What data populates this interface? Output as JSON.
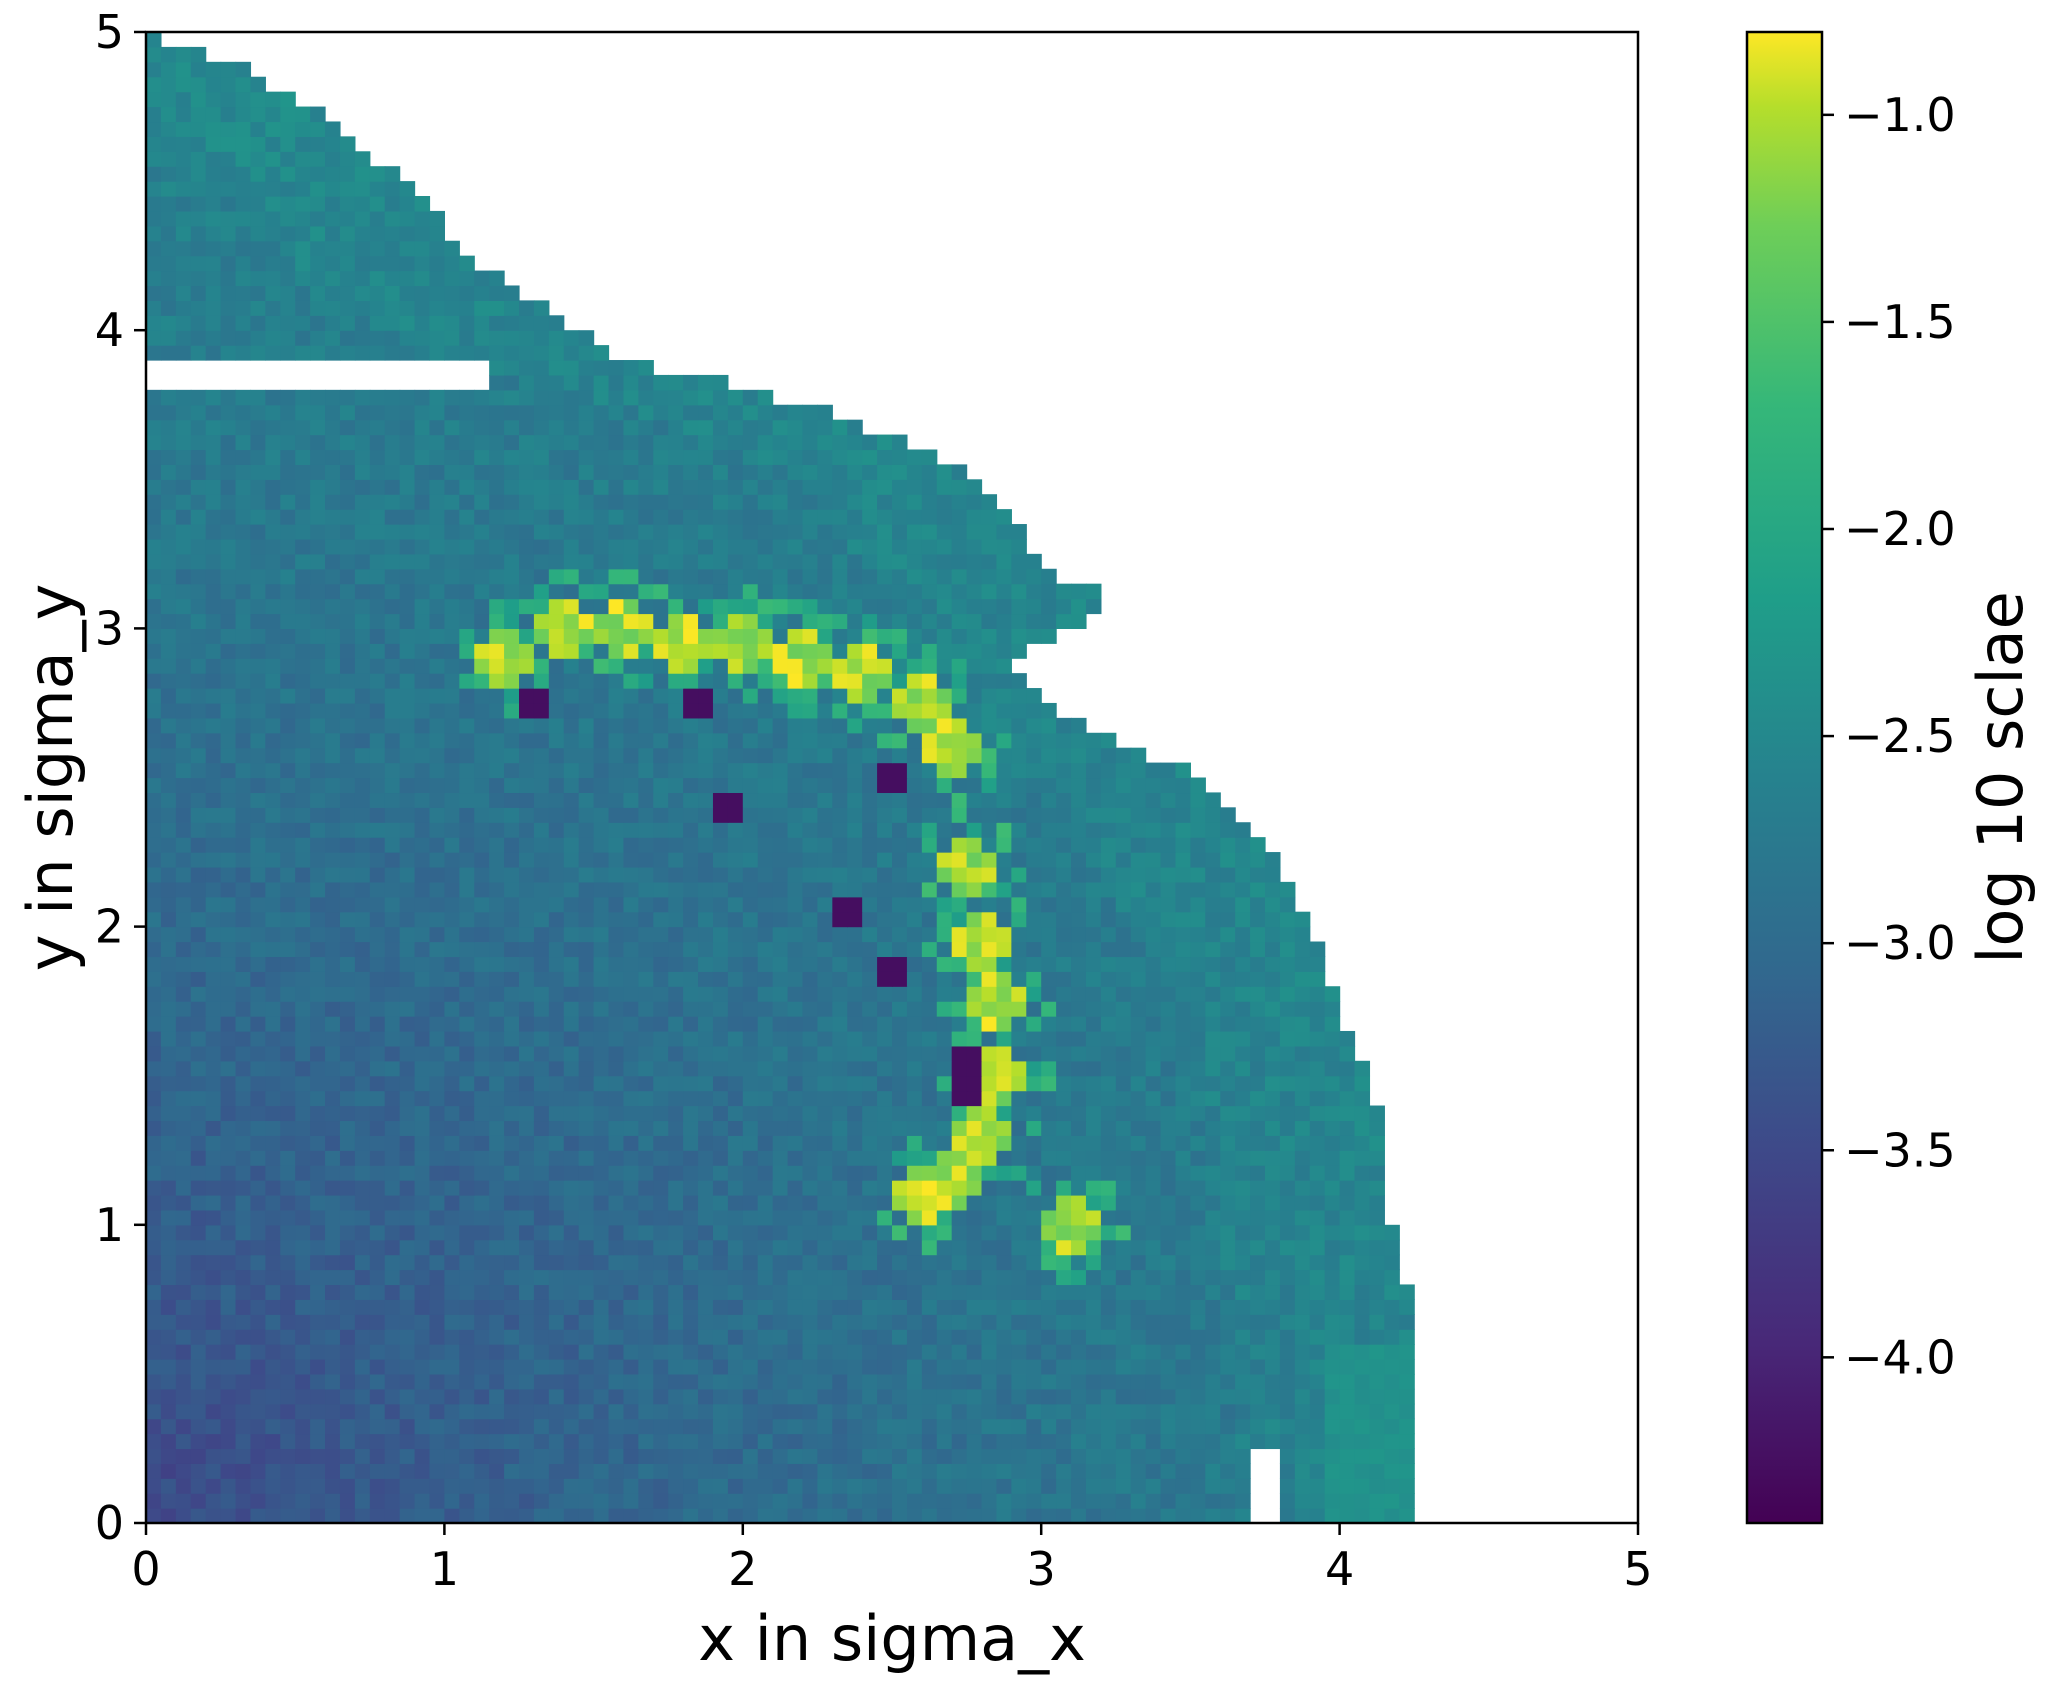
{
  "chart_data": {
    "type": "heatmap",
    "xlabel": "x in sigma_x",
    "ylabel": "y in sigma_y",
    "xlim": [
      0,
      5
    ],
    "ylim": [
      0,
      5
    ],
    "xticks": [
      0,
      1,
      2,
      3,
      4,
      5
    ],
    "yticks": [
      0,
      1,
      2,
      3,
      4,
      5
    ],
    "xtick_labels": [
      "0",
      "1",
      "2",
      "3",
      "4",
      "5"
    ],
    "ytick_labels": [
      "0",
      "1",
      "2",
      "3",
      "4",
      "5"
    ],
    "grid": false,
    "cell_size": 0.05,
    "colorbar": {
      "label": "log 10 sclae",
      "colormap": "viridis",
      "vmin": -4.4,
      "vmax": -0.8,
      "ticks": [
        -1.0,
        -1.5,
        -2.0,
        -2.5,
        -3.0,
        -3.5,
        -4.0
      ],
      "tick_labels": [
        "−1.0",
        "−1.5",
        "−2.0",
        "−2.5",
        "−3.0",
        "−3.5",
        "−4.0"
      ]
    },
    "boundary": [
      [
        0.0,
        4.25
      ],
      [
        0.3,
        4.25
      ],
      [
        0.5,
        4.25
      ],
      [
        0.7,
        4.25
      ],
      [
        0.9,
        4.2
      ],
      [
        1.1,
        4.15
      ],
      [
        1.3,
        4.15
      ],
      [
        1.5,
        4.1
      ],
      [
        1.7,
        4.0
      ],
      [
        1.9,
        3.95
      ],
      [
        2.1,
        3.85
      ],
      [
        2.3,
        3.75
      ],
      [
        2.5,
        3.55
      ],
      [
        2.6,
        3.3
      ],
      [
        2.7,
        3.1
      ],
      [
        2.8,
        2.95
      ],
      [
        2.9,
        2.9
      ],
      [
        3.0,
        3.1
      ],
      [
        3.1,
        3.25
      ],
      [
        3.2,
        3.0
      ],
      [
        3.3,
        2.95
      ],
      [
        3.4,
        2.9
      ],
      [
        3.5,
        2.8
      ],
      [
        3.6,
        2.6
      ],
      [
        3.7,
        2.35
      ],
      [
        3.8,
        2.05
      ],
      [
        3.9,
        1.6
      ],
      [
        4.0,
        1.45
      ],
      [
        4.1,
        1.3
      ],
      [
        4.2,
        1.15
      ],
      [
        4.3,
        1.05
      ],
      [
        4.4,
        0.95
      ],
      [
        4.5,
        0.9
      ],
      [
        4.6,
        0.7
      ],
      [
        4.7,
        0.65
      ],
      [
        4.8,
        0.45
      ],
      [
        4.9,
        0.3
      ],
      [
        5.0,
        0.0
      ]
    ],
    "series": [
      {
        "name": "",
        "kind": "gradient-field",
        "base_value_at_origin": -3.6,
        "value_at_boundary": -2.55,
        "noise_amplitude": 0.18
      },
      {
        "name": "",
        "kind": "high-value-ridge",
        "points": [
          [
            1.2,
            2.9
          ],
          [
            1.4,
            3.0
          ],
          [
            1.6,
            3.0
          ],
          [
            1.8,
            2.95
          ],
          [
            2.0,
            2.95
          ],
          [
            2.2,
            2.9
          ],
          [
            2.4,
            2.85
          ],
          [
            2.6,
            2.75
          ],
          [
            2.7,
            2.6
          ],
          [
            2.75,
            2.2
          ],
          [
            2.8,
            1.95
          ],
          [
            2.85,
            1.75
          ],
          [
            2.85,
            1.5
          ],
          [
            2.8,
            1.3
          ],
          [
            2.7,
            1.15
          ],
          [
            2.6,
            1.1
          ],
          [
            3.1,
            1.0
          ]
        ],
        "value": -1.05
      },
      {
        "name": "",
        "kind": "low-value-spots",
        "points": [
          [
            1.85,
            2.75
          ],
          [
            1.95,
            2.4
          ],
          [
            2.5,
            2.5
          ],
          [
            2.75,
            1.55
          ],
          [
            2.75,
            1.45
          ],
          [
            1.3,
            2.75
          ],
          [
            2.35,
            2.05
          ],
          [
            2.5,
            1.85
          ]
        ],
        "value": -4.25
      }
    ]
  }
}
